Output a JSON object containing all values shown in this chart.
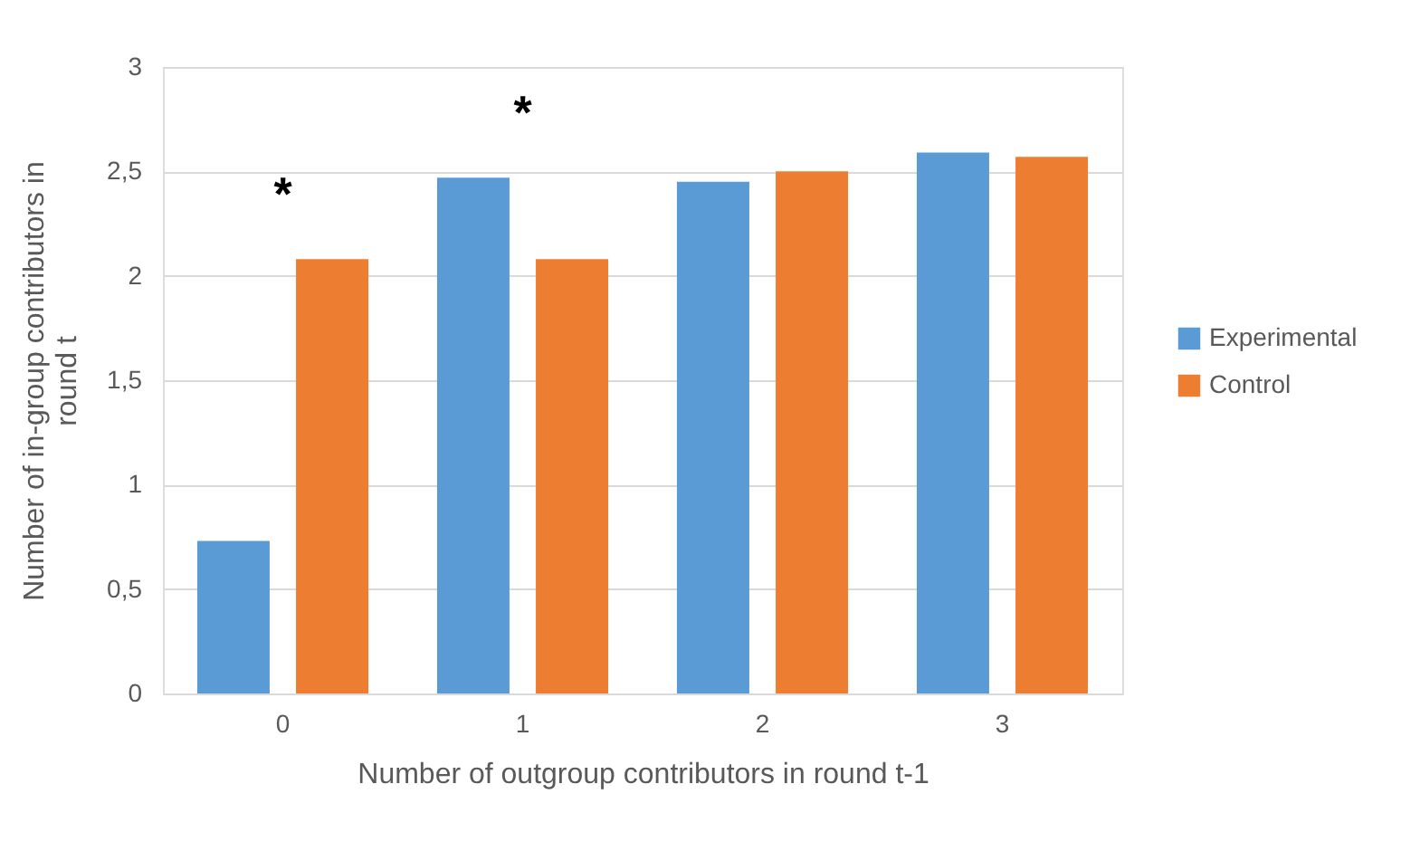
{
  "chart_data": {
    "type": "bar",
    "xlabel": "Number of outgroup contributors in round t-1",
    "ylabel": "Number of in-group contributors in round t",
    "categories": [
      "0",
      "1",
      "2",
      "3"
    ],
    "series": [
      {
        "name": "Experimental",
        "color": "#5b9bd5",
        "values": [
          0.73,
          2.47,
          2.45,
          2.59
        ]
      },
      {
        "name": "Control",
        "color": "#ed7d31",
        "values": [
          2.08,
          2.08,
          2.5,
          2.57
        ]
      }
    ],
    "ylim": [
      0,
      3
    ],
    "yticks": [
      0,
      {
        "value": 0.5,
        "label": "0,5"
      },
      1,
      {
        "value": 1.5,
        "label": "1,5"
      },
      2,
      {
        "value": 2.5,
        "label": "2,5"
      },
      3
    ],
    "grid": "y",
    "legend": "right",
    "annotations": [
      "*",
      "*"
    ]
  }
}
